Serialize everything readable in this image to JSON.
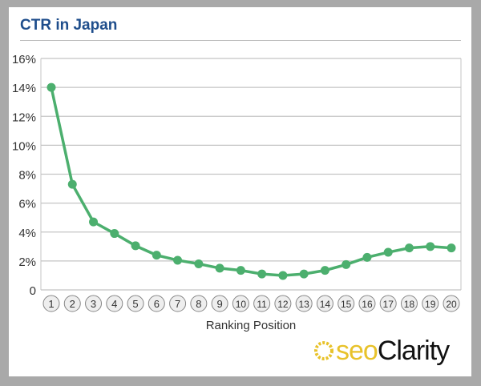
{
  "chart_data": {
    "type": "line",
    "title": "CTR in Japan",
    "xlabel": "Ranking Position",
    "ylabel": "",
    "categories": [
      "1",
      "2",
      "3",
      "4",
      "5",
      "6",
      "7",
      "8",
      "9",
      "10",
      "11",
      "12",
      "13",
      "14",
      "15",
      "16",
      "17",
      "18",
      "19",
      "20"
    ],
    "series": [
      {
        "name": "CTR",
        "values": [
          14.0,
          7.3,
          4.7,
          3.9,
          3.05,
          2.4,
          2.05,
          1.8,
          1.5,
          1.35,
          1.1,
          1.0,
          1.1,
          1.35,
          1.75,
          2.25,
          2.6,
          2.9,
          3.0,
          2.9
        ]
      }
    ],
    "yticks": [
      "0",
      "2%",
      "4%",
      "6%",
      "8%",
      "10%",
      "12%",
      "14%",
      "16%"
    ],
    "ylim": [
      0,
      16
    ],
    "grid": true,
    "line_color": "#4caf6e"
  },
  "logo": {
    "part1": "seo",
    "part2": "Clarity"
  }
}
